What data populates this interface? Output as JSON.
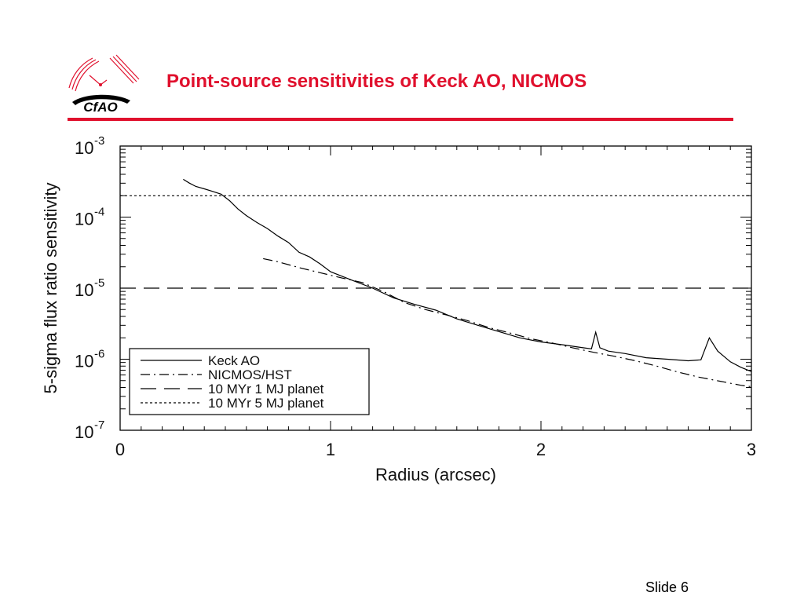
{
  "slide": {
    "title": "Point-source sensitivities of Keck AO, NICMOS",
    "slide_number": "Slide 6",
    "logo_text": "CfAO",
    "accent_color": "#e0102d"
  },
  "chart_data": {
    "type": "line",
    "xlabel": "Radius (arcsec)",
    "ylabel": "5-sigma flux ratio sensitivity",
    "xlim": [
      0,
      3
    ],
    "ylim": [
      1e-07,
      0.001
    ],
    "yscale": "log",
    "x_ticks": [
      {
        "value": 0,
        "label": "0"
      },
      {
        "value": 1,
        "label": "1"
      },
      {
        "value": 2,
        "label": "2"
      },
      {
        "value": 3,
        "label": "3"
      }
    ],
    "y_ticks": [
      {
        "exp": -3,
        "base": "10",
        "sup": "-3"
      },
      {
        "exp": -4,
        "base": "10",
        "sup": "-4"
      },
      {
        "exp": -5,
        "base": "10",
        "sup": "-5"
      },
      {
        "exp": -6,
        "base": "10",
        "sup": "-6"
      },
      {
        "exp": -7,
        "base": "10",
        "sup": "-7"
      }
    ],
    "legend_position": "bottom-left",
    "series": [
      {
        "name": "Keck AO",
        "style": "solid",
        "color": "#000000",
        "points": [
          [
            0.3,
            0.00034
          ],
          [
            0.33,
            0.0003
          ],
          [
            0.36,
            0.00027
          ],
          [
            0.4,
            0.00025
          ],
          [
            0.44,
            0.00023
          ],
          [
            0.48,
            0.00021
          ],
          [
            0.52,
            0.00017
          ],
          [
            0.56,
            0.00013
          ],
          [
            0.6,
            0.000105
          ],
          [
            0.65,
            8.4e-05
          ],
          [
            0.7,
            6.9e-05
          ],
          [
            0.75,
            5.4e-05
          ],
          [
            0.8,
            4.4e-05
          ],
          [
            0.85,
            3.2e-05
          ],
          [
            0.9,
            2.75e-05
          ],
          [
            0.95,
            2.2e-05
          ],
          [
            1.0,
            1.7e-05
          ],
          [
            1.1,
            1.3e-05
          ],
          [
            1.2,
            1e-05
          ],
          [
            1.3,
            7.3e-06
          ],
          [
            1.4,
            5.9e-06
          ],
          [
            1.5,
            4.9e-06
          ],
          [
            1.6,
            3.7e-06
          ],
          [
            1.7,
            3e-06
          ],
          [
            1.8,
            2.45e-06
          ],
          [
            1.9,
            2e-06
          ],
          [
            2.0,
            1.75e-06
          ],
          [
            2.1,
            1.6e-06
          ],
          [
            2.2,
            1.45e-06
          ],
          [
            2.24,
            1.4e-06
          ],
          [
            2.26,
            2.4e-06
          ],
          [
            2.28,
            1.45e-06
          ],
          [
            2.32,
            1.3e-06
          ],
          [
            2.4,
            1.2e-06
          ],
          [
            2.5,
            1.05e-06
          ],
          [
            2.6,
            1e-06
          ],
          [
            2.7,
            9.5e-07
          ],
          [
            2.76,
            9.8e-07
          ],
          [
            2.8,
            2e-06
          ],
          [
            2.84,
            1.3e-06
          ],
          [
            2.9,
            9.2e-07
          ],
          [
            2.95,
            7.7e-07
          ],
          [
            3.0,
            6.7e-07
          ]
        ]
      },
      {
        "name": "NICMOS/HST",
        "style": "dash-dot",
        "color": "#000000",
        "points": [
          [
            0.68,
            2.6e-05
          ],
          [
            0.75,
            2.35e-05
          ],
          [
            0.85,
            1.95e-05
          ],
          [
            0.95,
            1.65e-05
          ],
          [
            1.05,
            1.4e-05
          ],
          [
            1.15,
            1.2e-05
          ],
          [
            1.25,
            9e-06
          ],
          [
            1.35,
            6.3e-06
          ],
          [
            1.45,
            5e-06
          ],
          [
            1.55,
            4.2e-06
          ],
          [
            1.65,
            3.5e-06
          ],
          [
            1.75,
            2.8e-06
          ],
          [
            1.85,
            2.35e-06
          ],
          [
            1.95,
            1.95e-06
          ],
          [
            2.05,
            1.7e-06
          ],
          [
            2.15,
            1.45e-06
          ],
          [
            2.25,
            1.25e-06
          ],
          [
            2.35,
            1.1e-06
          ],
          [
            2.45,
            9.5e-07
          ],
          [
            2.55,
            8e-07
          ],
          [
            2.65,
            6.6e-07
          ],
          [
            2.75,
            5.6e-07
          ],
          [
            2.85,
            4.9e-07
          ],
          [
            2.95,
            4.3e-07
          ],
          [
            3.0,
            4.1e-07
          ]
        ]
      },
      {
        "name": "10 MYr 1 MJ planet",
        "style": "long-dash",
        "color": "#000000",
        "points": [
          [
            0,
            1e-05
          ],
          [
            3,
            1e-05
          ]
        ]
      },
      {
        "name": "10 MYr 5 MJ planet",
        "style": "dotted",
        "color": "#000000",
        "points": [
          [
            0,
            0.0002
          ],
          [
            3,
            0.0002
          ]
        ]
      }
    ]
  }
}
